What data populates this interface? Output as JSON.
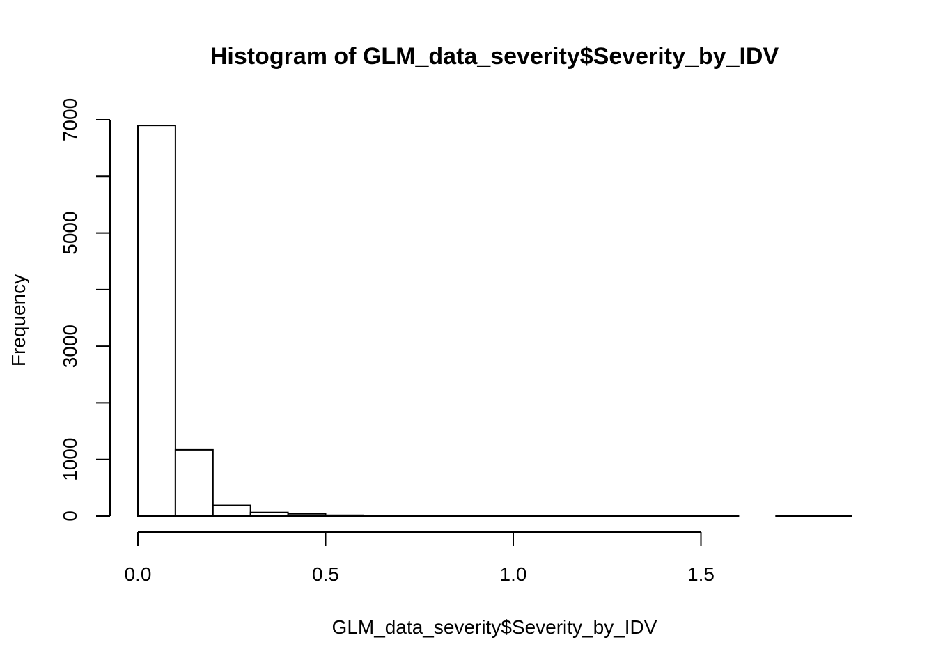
{
  "chart_data": {
    "type": "bar",
    "title": "Histogram of GLM_data_severity$Severity_by_IDV",
    "xlabel": "GLM_data_severity$Severity_by_IDV",
    "ylabel": "Frequency",
    "bin_width": 0.1,
    "bin_starts": [
      0.0,
      0.1,
      0.2,
      0.3,
      0.4,
      0.5,
      0.6,
      0.7,
      0.8,
      0.9,
      1.0,
      1.1,
      1.2,
      1.3,
      1.4,
      1.5,
      1.6,
      1.7,
      1.8
    ],
    "values": [
      6900,
      1170,
      190,
      65,
      40,
      15,
      10,
      3,
      8,
      2,
      1,
      1,
      1,
      1,
      1,
      1,
      0,
      1,
      1
    ],
    "xlim": [
      0.0,
      1.9
    ],
    "ylim": [
      0,
      7000
    ],
    "x_ticks": [
      0.0,
      0.5,
      1.0,
      1.5
    ],
    "x_tick_labels": [
      "0.0",
      "0.5",
      "1.0",
      "1.5"
    ],
    "y_ticks": [
      0,
      1000,
      2000,
      3000,
      4000,
      5000,
      6000,
      7000
    ],
    "y_tick_labels": [
      "0",
      "1000",
      "",
      "3000",
      "",
      "5000",
      "",
      "7000"
    ],
    "bar_fill": "#ffffff",
    "bar_stroke": "#000000",
    "grid": false,
    "legend": "none"
  }
}
